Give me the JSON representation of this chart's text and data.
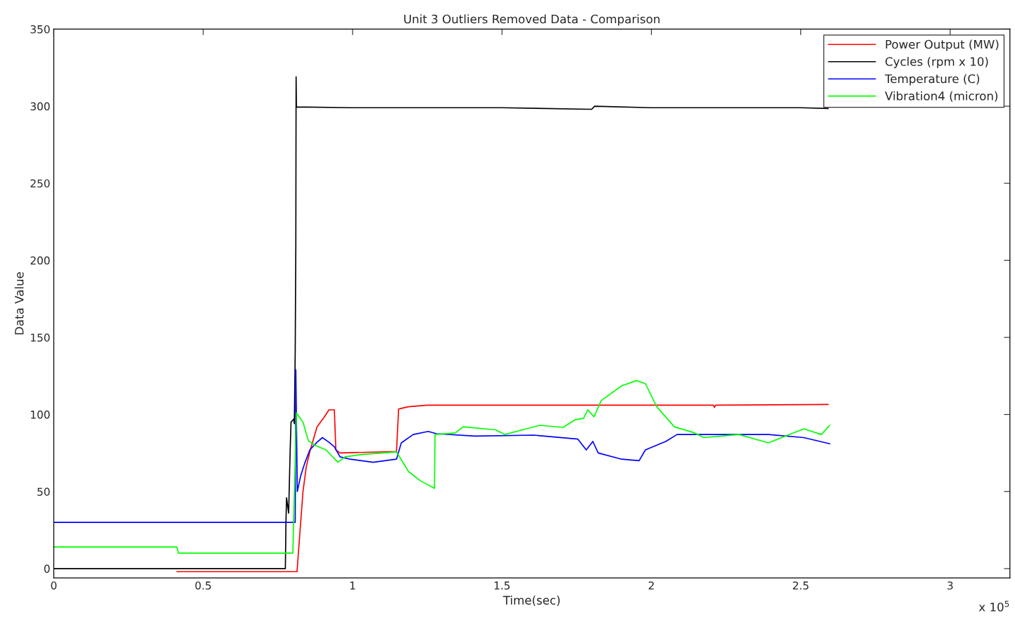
{
  "chart_data": {
    "type": "line",
    "title": "Unit 3 Outliers Removed Data - Comparison",
    "xlabel": "Time(sec)",
    "ylabel": "Data Value",
    "annotations": [
      "x 10$^{5}$"
    ],
    "xlim": [
      0,
      3.2
    ],
    "xticks": [
      0,
      0.5,
      1,
      1.5,
      2,
      2.5,
      3
    ],
    "ylim": [
      -6,
      350
    ],
    "yticks": [
      0,
      50,
      100,
      150,
      200,
      250,
      300,
      350
    ],
    "grid": false,
    "legend": "top right",
    "line_style": "solid",
    "marker": "none",
    "series": [
      {
        "name": "Power Output (MW)",
        "color": "#ff0000",
        "x": [
          0.412,
          0.814,
          0.834,
          0.845,
          0.857,
          0.881,
          0.904,
          0.921,
          0.939,
          0.944,
          0.958,
          1.147,
          1.154,
          1.187,
          1.25,
          2.208,
          2.211,
          2.215,
          2.592
        ],
        "values": [
          -2,
          -2,
          50,
          66,
          76,
          92,
          98,
          103,
          103,
          77,
          75,
          76,
          103.5,
          105,
          106,
          106,
          104.5,
          106,
          106.5
        ]
      },
      {
        "name": "Cycles (rpm x 10)",
        "color": "#000000",
        "x": [
          0,
          0.775,
          0.777,
          0.779,
          0.786,
          0.791,
          0.794,
          0.803,
          0.805,
          0.808,
          0.81,
          0.811,
          0.812,
          1.0,
          1.5,
          1.8,
          1.81,
          2.0,
          2.5,
          2.592
        ],
        "values": [
          0,
          0,
          30,
          46,
          36,
          76,
          95,
          97,
          94,
          141,
          209,
          319,
          299.5,
          299,
          299,
          298,
          300,
          299,
          299,
          298.5
        ]
      },
      {
        "name": "Temperature (C)",
        "color": "#0000ff",
        "x": [
          0,
          0.808,
          0.81,
          0.815,
          0.826,
          0.841,
          0.857,
          0.881,
          0.899,
          0.921,
          0.939,
          0.958,
          0.991,
          1.069,
          1.147,
          1.163,
          1.203,
          1.253,
          1.281,
          1.41,
          1.606,
          1.754,
          1.782,
          1.804,
          1.822,
          1.9,
          1.959,
          1.98,
          2.048,
          2.086,
          2.194,
          2.392,
          2.51,
          2.597
        ],
        "values": [
          30,
          30,
          129,
          50,
          60,
          69,
          77,
          82,
          85,
          82,
          79,
          72.5,
          71,
          69,
          71,
          81.6,
          87,
          89,
          87.5,
          86,
          86.6,
          84,
          77,
          82.5,
          75,
          71,
          70,
          77,
          82.5,
          87,
          87,
          87,
          85,
          81
        ]
      },
      {
        "name": "Vibration4 (micron)",
        "color": "#00ff00",
        "x": [
          0,
          0.412,
          0.417,
          0.8,
          0.812,
          0.834,
          0.852,
          0.874,
          0.911,
          0.951,
          0.975,
          1.029,
          1.147,
          1.187,
          1.227,
          1.274,
          1.276,
          1.344,
          1.37,
          1.479,
          1.509,
          1.627,
          1.705,
          1.745,
          1.773,
          1.787,
          1.808,
          1.832,
          1.9,
          1.95,
          1.98,
          2.018,
          2.077,
          2.145,
          2.176,
          2.293,
          2.392,
          2.51,
          2.569,
          2.597
        ],
        "values": [
          14,
          14,
          10,
          10,
          101,
          95,
          83,
          80,
          77,
          69,
          72.5,
          74,
          75.7,
          63,
          57,
          52,
          87,
          88,
          92,
          90,
          87,
          93,
          91.6,
          96.6,
          97.5,
          103,
          98.5,
          109,
          118.5,
          122,
          120,
          105,
          92,
          88,
          85,
          87,
          81.6,
          90.7,
          87,
          93
        ]
      }
    ]
  }
}
